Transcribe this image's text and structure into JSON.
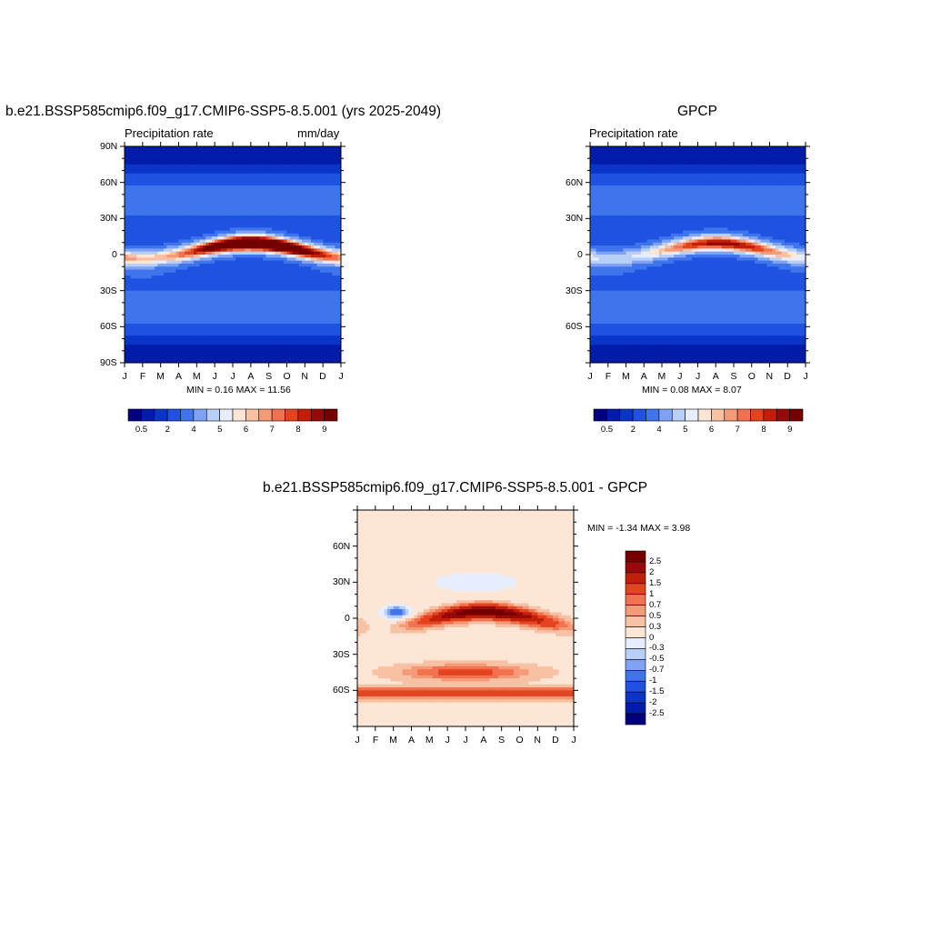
{
  "chart_data": [
    {
      "type": "heatmap",
      "title": "b.e21.BSSP585cmip6.f09_g17.CMIP6-SSP5-8.5.001 (yrs 2025-2049)",
      "left_label": "Precipitation rate",
      "right_label": "mm/day",
      "x": [
        "J",
        "F",
        "M",
        "A",
        "M",
        "J",
        "J",
        "A",
        "S",
        "O",
        "N",
        "D",
        "J"
      ],
      "ylabels": [
        "90N",
        "60N",
        "30N",
        "0",
        "30S",
        "60S",
        "90S"
      ],
      "ylim": [
        -90,
        90
      ],
      "stats": "MIN =   0.16 MAX =  11.56",
      "colorbar_labels": [
        "0.5",
        "2",
        "4",
        "5",
        "6",
        "7",
        "8",
        "9"
      ],
      "itcz": {
        "peak": 11.56,
        "min": 0.16
      }
    },
    {
      "type": "heatmap",
      "title": "GPCP",
      "left_label": "Precipitation rate",
      "right_label": "",
      "x": [
        "J",
        "F",
        "M",
        "A",
        "M",
        "J",
        "J",
        "A",
        "S",
        "O",
        "N",
        "D",
        "J"
      ],
      "ylabels": [
        "60N",
        "30N",
        "0",
        "30S",
        "60S"
      ],
      "ylim": [
        -90,
        90
      ],
      "stats": "MIN =   0.08 MAX =   8.07",
      "colorbar_labels": [
        "0.5",
        "2",
        "4",
        "5",
        "6",
        "7",
        "8",
        "9"
      ],
      "itcz": {
        "peak": 8.07,
        "min": 0.08
      }
    },
    {
      "type": "heatmap",
      "title": "b.e21.BSSP585cmip6.f09_g17.CMIP6-SSP5-8.5.001 - GPCP",
      "x": [
        "J",
        "F",
        "M",
        "A",
        "M",
        "J",
        "J",
        "A",
        "S",
        "O",
        "N",
        "D",
        "J"
      ],
      "ylabels": [
        "60N",
        "30N",
        "0",
        "30S",
        "60S"
      ],
      "ylim": [
        -90,
        90
      ],
      "stats": "MIN =  -1.34 MAX =   3.98",
      "colorbar_labels": [
        "2.5",
        "2",
        "1.5",
        "1",
        "0.7",
        "0.5",
        "0.3",
        "0",
        "-0.3",
        "-0.5",
        "-0.7",
        "-1",
        "-1.5",
        "-2",
        "-2.5"
      ]
    }
  ],
  "colors": {
    "seq": [
      "#00007f",
      "#001ca8",
      "#0a35c8",
      "#1f52e0",
      "#3f74ec",
      "#7fa2f4",
      "#b8cff8",
      "#e6eefd",
      "#fde6d6",
      "#f8c1a4",
      "#f59a78",
      "#f1724e",
      "#e2441f",
      "#c0200a",
      "#98090a",
      "#740000"
    ],
    "div": [
      "#740000",
      "#98090a",
      "#c0200a",
      "#e2441f",
      "#f1724e",
      "#f59a78",
      "#f8c1a4",
      "#fde6d6",
      "#e6eefd",
      "#b8cff8",
      "#7fa2f4",
      "#3f74ec",
      "#1f52e0",
      "#0a35c8",
      "#001ca8",
      "#00007f"
    ]
  }
}
